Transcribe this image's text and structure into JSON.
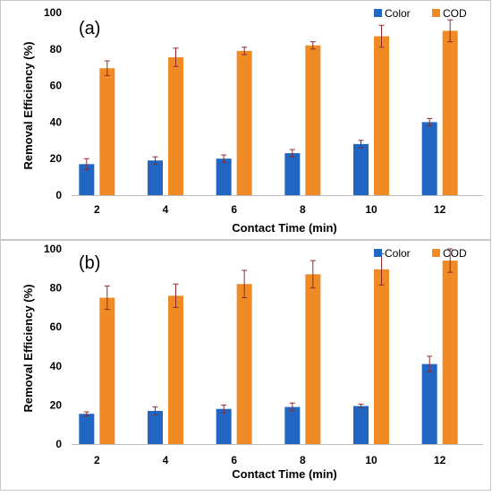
{
  "colors": {
    "color_series": "#2166c2",
    "cod_series": "#ef8a24",
    "error_bar": "#8e2a2a",
    "frame": "#c8c8c8",
    "axis": "#bdbdbd"
  },
  "chart_data": [
    {
      "type": "bar",
      "panel_label": "(a)",
      "categories": [
        "2",
        "4",
        "6",
        "8",
        "10",
        "12"
      ],
      "xlabel": "Contact Time (min)",
      "ylabel": "Removal Efficiency (%)",
      "ylim": [
        0,
        100
      ],
      "yticks": [
        "0",
        "20",
        "40",
        "60",
        "80",
        "100"
      ],
      "grid": false,
      "legend_position": "top-right",
      "series": [
        {
          "name": "Color",
          "values": [
            17,
            19,
            20,
            23,
            28,
            40
          ],
          "errors": [
            3,
            2,
            2,
            2,
            2,
            2
          ]
        },
        {
          "name": "COD",
          "values": [
            69.5,
            75.5,
            79,
            82,
            87,
            90
          ],
          "errors": [
            4,
            5,
            2,
            2,
            6,
            6
          ]
        }
      ]
    },
    {
      "type": "bar",
      "panel_label": "(b)",
      "categories": [
        "2",
        "4",
        "6",
        "8",
        "10",
        "12"
      ],
      "xlabel": "Contact Time (min)",
      "ylabel": "Removal Efficiency (%)",
      "ylim": [
        0,
        100
      ],
      "yticks": [
        "0",
        "20",
        "40",
        "60",
        "80",
        "100"
      ],
      "grid": false,
      "legend_position": "top-right",
      "series": [
        {
          "name": "Color",
          "values": [
            15.5,
            17,
            18,
            19,
            19.5,
            41
          ],
          "errors": [
            1,
            2,
            2,
            2,
            1,
            4
          ]
        },
        {
          "name": "COD",
          "values": [
            75,
            76,
            82,
            87,
            89.5,
            94
          ],
          "errors": [
            6,
            6,
            7,
            7,
            8,
            6
          ]
        }
      ]
    }
  ]
}
